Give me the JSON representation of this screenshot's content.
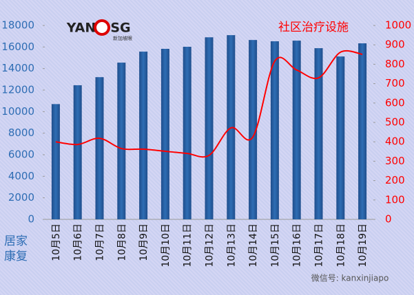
{
  "chart_data": {
    "type": "bar-line",
    "categories": [
      "10月5日",
      "10月6日",
      "10月7日",
      "10月8日",
      "10月9日",
      "10月10日",
      "10月11日",
      "10月12日",
      "10月13日",
      "10月14日",
      "10月15日",
      "10月16日",
      "10月17日",
      "10月18日",
      "10月19日"
    ],
    "series": [
      {
        "name": "居家康复",
        "color": "#2e6db4",
        "axis": "y",
        "values": [
          10700,
          12450,
          13200,
          14550,
          15570,
          15830,
          16020,
          16900,
          17100,
          16650,
          16530,
          16590,
          15890,
          15120,
          16340
        ]
      },
      {
        "name": "社区治疗设施",
        "color": "#ff0000",
        "axis": "y2",
        "values": [
          400,
          386,
          418,
          365,
          362,
          351,
          340,
          330,
          472,
          425,
          816,
          770,
          730,
          862,
          851
        ]
      }
    ],
    "ylim": [
      0,
      18000
    ],
    "yticks": [
      0,
      2000,
      4000,
      6000,
      8000,
      10000,
      12000,
      14000,
      16000,
      18000
    ],
    "y2lim": [
      0,
      1000
    ],
    "y2ticks": [
      0,
      100,
      200,
      300,
      400,
      500,
      600,
      700,
      800,
      900,
      1000
    ],
    "logo": {
      "left": "YAN",
      "right": "SG",
      "sub": "新加坡眼"
    },
    "watermark": "微信号: kanxinjiapo"
  }
}
